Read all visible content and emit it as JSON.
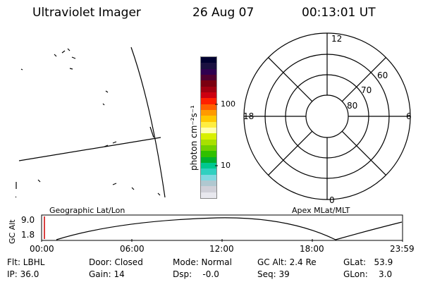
{
  "header": {
    "title": "Ultraviolet Imager",
    "date": "26 Aug 07",
    "time": "00:13:01 UT"
  },
  "colorbar": {
    "label": "photon cm⁻²s⁻¹",
    "ticks": [
      "100",
      "10"
    ],
    "colors": [
      "#000030",
      "#1a1040",
      "#300050",
      "#500030",
      "#7a0010",
      "#a00010",
      "#cc0010",
      "#ff2000",
      "#ff6000",
      "#ff9a00",
      "#ffc800",
      "#ffee40",
      "#ffffb0",
      "#d8f000",
      "#a8e000",
      "#70d000",
      "#30c000",
      "#00b030",
      "#00c890",
      "#30d0c0",
      "#80d8e0",
      "#b0c8d0",
      "#d0d0d8",
      "#e8e8ee"
    ]
  },
  "polar": {
    "labels": {
      "top": "12",
      "left": "18",
      "right": "6",
      "bottom": "0"
    },
    "lat_labels": [
      "60",
      "70",
      "80"
    ]
  },
  "timeline": {
    "left_label": "Geographic Lat/Lon",
    "right_label": "Apex MLat/MLT",
    "axis_title": "GC Alt",
    "y_ticks": [
      "9.0",
      "1.8"
    ],
    "x_ticks": [
      "00:00",
      "06:00",
      "12:00",
      "18:00",
      "23:59"
    ]
  },
  "status": {
    "flt": "Flt: LBHL",
    "ip": "IP: 36.0",
    "door": "Door: Closed",
    "gain": "Gain: 14",
    "mode": "Mode: Normal",
    "dsp": "Dsp:    -0.0",
    "gcalt": "GC Alt: 2.4 Re",
    "seq": "Seq: 39",
    "glat": "GLat:   53.9",
    "glon": "GLon:    3.0"
  },
  "colors": {
    "line": "#000000",
    "marker": "#cc0000"
  }
}
